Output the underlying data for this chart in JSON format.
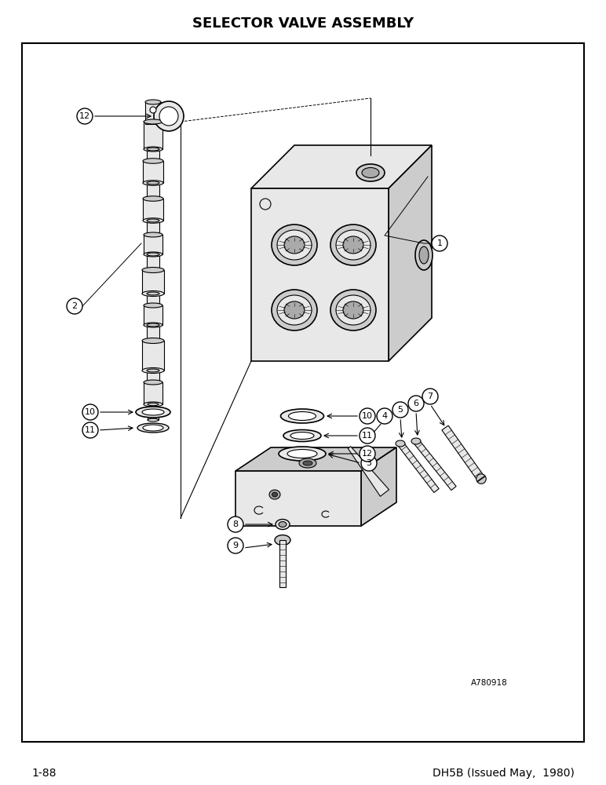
{
  "title": "SELECTOR VALVE ASSEMBLY",
  "footer_left": "1-88",
  "footer_right": "DH5B (Issued May,  1980)",
  "watermark": "A780918",
  "bg_color": "#ffffff",
  "border_color": "#000000",
  "title_fontsize": 13,
  "footer_fontsize": 10,
  "lw": 1.2
}
